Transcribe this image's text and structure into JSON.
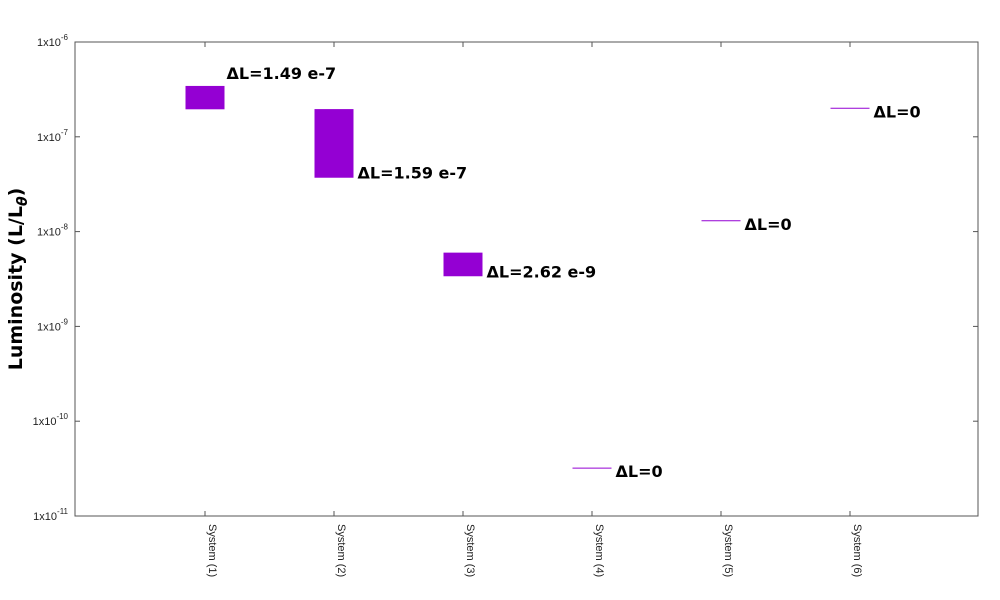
{
  "chart_data": {
    "type": "range-bar",
    "title": "",
    "xlabel": "",
    "ylabel": {
      "main": "Luminosity (L/L",
      "subscript": "θ",
      "close": ")"
    },
    "y_scale": "log",
    "ylim": [
      1e-11,
      1e-06
    ],
    "y_ticks": [
      {
        "value": 1e-06,
        "base": "1x10",
        "exp": "-6"
      },
      {
        "value": 1e-07,
        "base": "1x10",
        "exp": "-7"
      },
      {
        "value": 1e-08,
        "base": "1x10",
        "exp": "-8"
      },
      {
        "value": 1e-09,
        "base": "1x10",
        "exp": "-9"
      },
      {
        "value": 1e-10,
        "base": "1x10",
        "exp": "-10"
      },
      {
        "value": 1e-11,
        "base": "1x10",
        "exp": "-11"
      }
    ],
    "categories": [
      "System (1)",
      "System (2)",
      "System (3)",
      "System (4)",
      "System (5)",
      "System (6)"
    ],
    "color": "#9400D3",
    "ranges": [
      {
        "category": "System (1)",
        "low": 1.95e-07,
        "high": 3.44e-07,
        "label": "ΔL=1.49 e-7"
      },
      {
        "category": "System (2)",
        "low": 3.7e-08,
        "high": 1.96e-07,
        "label": "ΔL=1.59 e-7"
      },
      {
        "category": "System (3)",
        "low": 3.38e-09,
        "high": 6e-09,
        "label": "ΔL=2.62 e-9"
      },
      {
        "category": "System (4)",
        "low": 3.2e-11,
        "high": 3.2e-11,
        "label": "ΔL=0"
      },
      {
        "category": "System (5)",
        "low": 1.3e-08,
        "high": 1.3e-08,
        "label": "ΔL=0"
      },
      {
        "category": "System (6)",
        "low": 2e-07,
        "high": 2e-07,
        "label": "ΔL=0"
      }
    ],
    "grid": false,
    "legend": "none"
  }
}
